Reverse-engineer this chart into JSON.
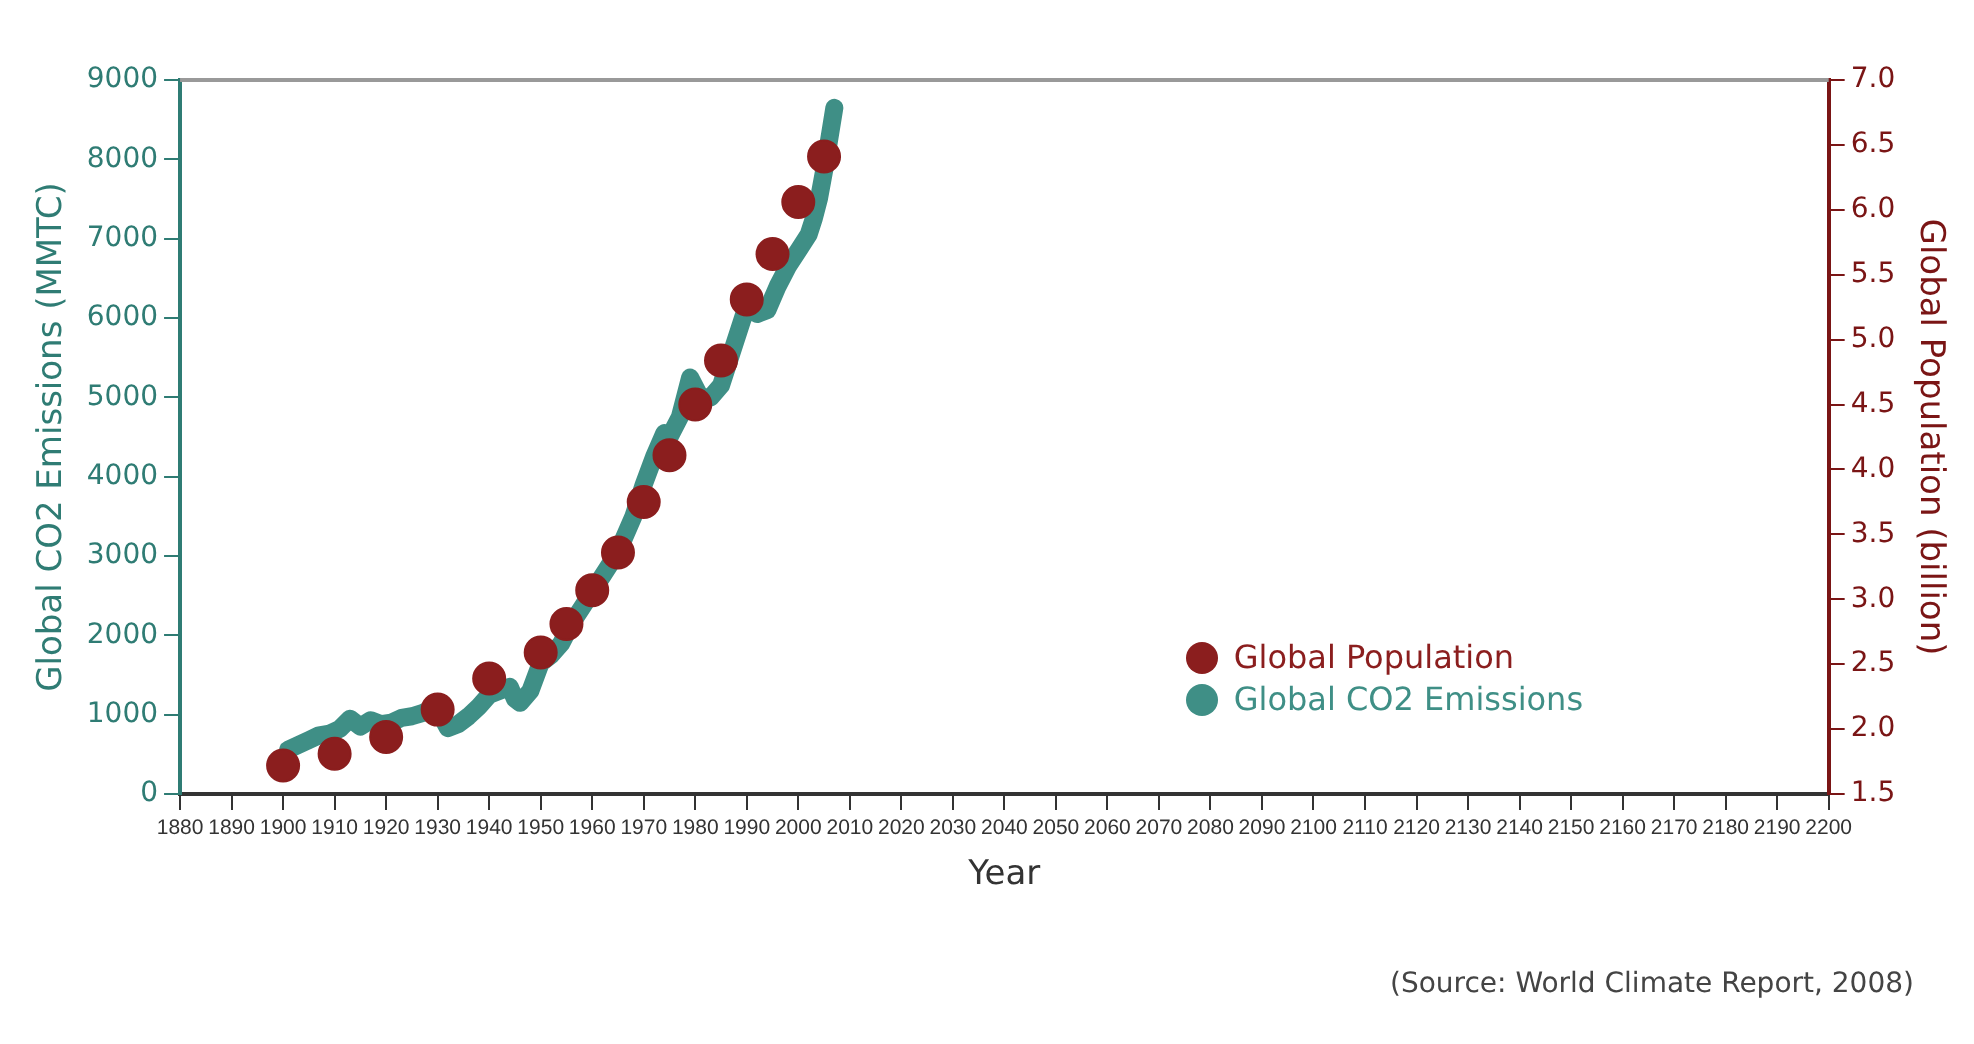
{
  "chart_data": {
    "type": "scatter",
    "xlabel": "Year",
    "ylabel": "Global CO2 Emissions (MMTC)",
    "y2label": "Global Population (billion)",
    "annotations": [
      "(Source: World Climate Report, 2008)"
    ],
    "xlim": [
      1880,
      2200
    ],
    "xticks": [
      1880,
      1890,
      1900,
      1910,
      1920,
      1930,
      1940,
      1950,
      1960,
      1970,
      1980,
      1990,
      2000,
      2010,
      2020,
      2030,
      2040,
      2050,
      2060,
      2070,
      2080,
      2090,
      2100,
      2110,
      2120,
      2130,
      2140,
      2150,
      2160,
      2170,
      2180,
      2190,
      2200
    ],
    "ylim": [
      0,
      9000
    ],
    "yticks": [
      0,
      1000,
      2000,
      3000,
      4000,
      5000,
      6000,
      7000,
      8000,
      9000
    ],
    "y2lim": [
      1.5,
      7.0
    ],
    "y2ticks": [
      {
        "value": 1.5,
        "label": "1.5"
      },
      {
        "value": 2,
        "label": "2.0"
      },
      {
        "value": 2.5,
        "label": "2.5"
      },
      {
        "value": 3,
        "label": "3.0"
      },
      {
        "value": 3.5,
        "label": "3.5"
      },
      {
        "value": 4,
        "label": "4.0"
      },
      {
        "value": 4.5,
        "label": "4.5"
      },
      {
        "value": 5,
        "label": "5.0"
      },
      {
        "value": 5.5,
        "label": "5.5"
      },
      {
        "value": 6,
        "label": "6.0"
      },
      {
        "value": 6.5,
        "label": "6.5"
      },
      {
        "value": 7,
        "label": "7.0"
      }
    ],
    "grid": false,
    "legend": "bottom right",
    "series": [
      {
        "name": "Global Population",
        "color": "#8b1e1e",
        "axis": "y2",
        "x": [
          1900,
          1910,
          1920,
          1930,
          1940,
          1950,
          1955,
          1960,
          1965,
          1970,
          1975,
          1980,
          1985,
          1990,
          1995,
          2000,
          2005
        ],
        "values": [
          1.72,
          1.81,
          1.94,
          2.15,
          2.39,
          2.59,
          2.81,
          3.07,
          3.36,
          3.75,
          4.11,
          4.5,
          4.84,
          5.31,
          5.66,
          6.06,
          6.41
        ]
      },
      {
        "name": "Global CO2 Emissions",
        "color": "#3f8f86",
        "type": "line",
        "x": [
          1901,
          1903,
          1905,
          1907,
          1909,
          1911,
          1913,
          1915,
          1917,
          1919,
          1921,
          1923,
          1925,
          1927,
          1929,
          1931,
          1932,
          1934,
          1936,
          1938,
          1940,
          1942,
          1944,
          1945,
          1946,
          1948,
          1950,
          1952,
          1954,
          1956,
          1958,
          1960,
          1962,
          1964,
          1966,
          1968,
          1970,
          1972,
          1974,
          1975,
          1977,
          1979,
          1981,
          1983,
          1985,
          1987,
          1989,
          1990,
          1991,
          1992,
          1994,
          1996,
          1998,
          2000,
          2001,
          2002,
          2003,
          2004,
          2005,
          2006,
          2007
        ],
        "values": [
          560,
          620,
          680,
          740,
          760,
          820,
          950,
          850,
          930,
          880,
          900,
          960,
          980,
          1020,
          1080,
          950,
          830,
          880,
          980,
          1100,
          1250,
          1300,
          1350,
          1200,
          1150,
          1300,
          1650,
          1750,
          1900,
          2150,
          2350,
          2550,
          2750,
          2950,
          3200,
          3500,
          3900,
          4250,
          4550,
          4500,
          4750,
          5250,
          5000,
          5000,
          5150,
          5550,
          5950,
          6150,
          6150,
          6050,
          6100,
          6400,
          6650,
          6850,
          6950,
          7050,
          7250,
          7500,
          7850,
          8250,
          8650
        ]
      }
    ]
  }
}
